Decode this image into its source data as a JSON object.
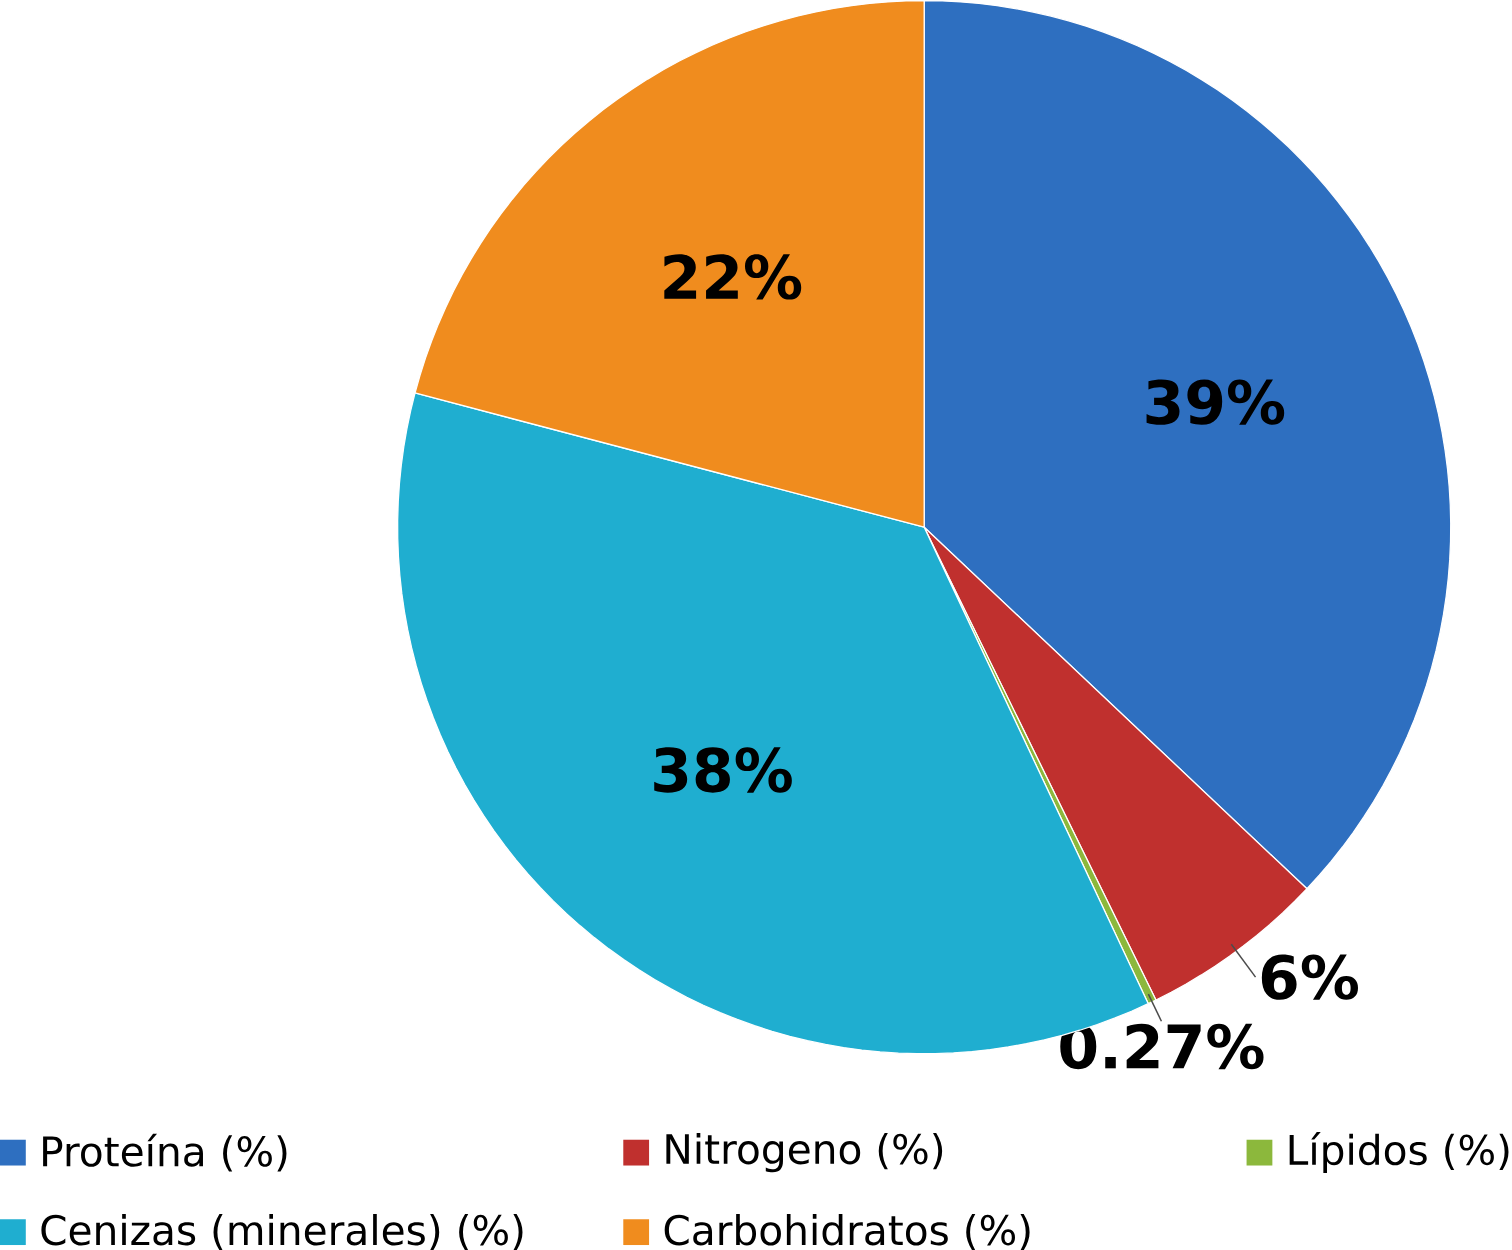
{
  "chart_data": {
    "type": "pie",
    "categories": [
      "Proteína (%)",
      "Nitrogeno (%)",
      "Lípidos (%)",
      "Cenizas (minerales) (%)",
      "Carbohidratos (%)"
    ],
    "values": [
      39,
      6,
      0.27,
      38,
      22
    ],
    "colors": [
      "#2e6fc0",
      "#c0302e",
      "#8cb83c",
      "#1faed0",
      "#f08c1e"
    ],
    "value_labels": [
      "39%",
      "6%",
      "0.27%",
      "38%",
      "22%"
    ],
    "legend": "bottom"
  }
}
